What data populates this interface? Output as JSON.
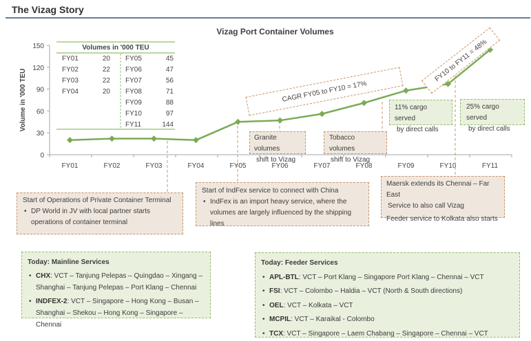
{
  "header": {
    "title": "The Vizag Story"
  },
  "chart_data": {
    "type": "line",
    "title": "Vizag Port Container Volumes",
    "xlabel": "",
    "ylabel": "Volume in '000 TEU",
    "ylim": [
      0,
      150
    ],
    "yticks": [
      0,
      30,
      60,
      90,
      120,
      150
    ],
    "categories": [
      "FY01",
      "FY02",
      "FY03",
      "FY04",
      "FY05",
      "FY06",
      "FY07",
      "FY08",
      "FY09",
      "FY10",
      "FY11"
    ],
    "series": [
      {
        "name": "Volumes in '000 TEU",
        "values": [
          20,
          22,
          22,
          20,
          45,
          47,
          56,
          71,
          88,
          97,
          144
        ],
        "color": "#7aab55"
      }
    ],
    "grid": false,
    "annotations": [
      "CAGR FY05 to FY10 = 17%",
      "FY10 to FY11 = 48%"
    ]
  },
  "data_table": {
    "header": "Volumes  in '000 TEU",
    "left": [
      {
        "fy": "FY01",
        "v": "20"
      },
      {
        "fy": "FY02",
        "v": "22"
      },
      {
        "fy": "FY03",
        "v": "22"
      },
      {
        "fy": "FY04",
        "v": "20"
      }
    ],
    "right": [
      {
        "fy": "FY05",
        "v": "45"
      },
      {
        "fy": "FY06",
        "v": "47"
      },
      {
        "fy": "FY07",
        "v": "56"
      },
      {
        "fy": "FY08",
        "v": "71"
      },
      {
        "fy": "FY09",
        "v": "88"
      },
      {
        "fy": "FY10",
        "v": "97"
      },
      {
        "fy": "FY11",
        "v": "144"
      }
    ]
  },
  "callouts": {
    "cagr": "CAGR FY05 to FY10 = 17%",
    "fy10_11": "FY10 to FY11 = 48%",
    "granite": [
      "Granite volumes",
      "shift to Vizag"
    ],
    "tobacco": [
      "Tobacco volumes",
      "shift to Vizag"
    ],
    "direct11": [
      "11% cargo served",
      "by direct calls"
    ],
    "direct25": [
      "25% cargo served",
      "by direct calls"
    ],
    "private_terminal": {
      "heading": "Start of Operations of Private Container Terminal",
      "bullet": [
        "DP World in JV with local partner starts",
        "operations of container terminal"
      ]
    },
    "indfex": {
      "heading": "Start of IndFex service to  connect with China",
      "bullet": [
        "IndFex is an import heavy service, where the",
        "volumes are largely influenced by the shipping lines"
      ]
    },
    "maersk": {
      "line1": "Maersk extends its Chennai – Far East",
      "line2": "Service to also call Vizag",
      "line3": "Feeder service to Kolkata also starts"
    }
  },
  "mainline": {
    "heading": "Today: Mainline Services",
    "items": [
      {
        "code": "CHX",
        "l1": ": VCT – Tanjung Pelepas – Quingdao – Xingang –",
        "l2": "Shanghai – Tanjung Pelepas – Port Klang – Chennai"
      },
      {
        "code": "INDFEX-2",
        "l1": ": VCT – Singapore – Hong Kong – Busan –",
        "l2": "Shanghai – Shekou – Hong Kong – Singapore – Chennai"
      }
    ]
  },
  "feeder": {
    "heading": "Today: Feeder Services",
    "items": [
      {
        "code": "APL-BTL",
        "text": ": VCT – Port Klang – Singapore Port Klang – Chennai – VCT"
      },
      {
        "code": "FSI",
        "text": ": VCT – Colombo – Haldia – VCT (North & South directions)"
      },
      {
        "code": "OEL",
        "text": ": VCT – Kolkata – VCT"
      },
      {
        "code": "MCPIL",
        "text": ": VCT – Karaikal - Colombo"
      },
      {
        "code": "TCX",
        "text": ": VCT – Singapore – Laem Chabang – Singapore – Chennai – VCT"
      }
    ]
  }
}
